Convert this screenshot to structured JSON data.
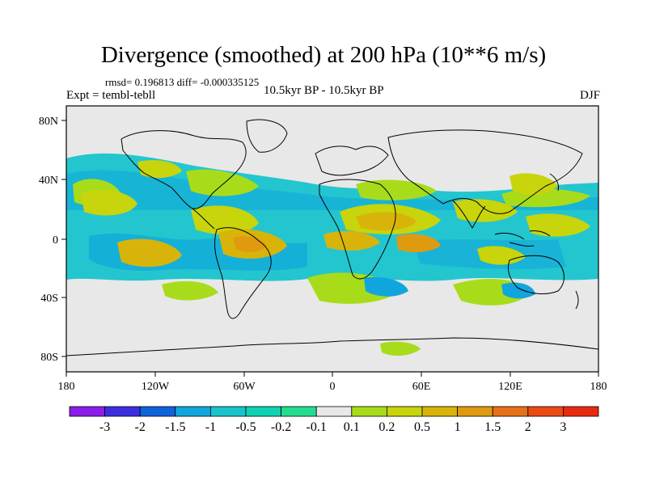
{
  "title": "Divergence (smoothed) at 200 hPa (10**6 m/s)",
  "stats": "rmsd= 0.196813 diff= -0.000335125",
  "experiment": "Expt = tembl-tebll",
  "period": "10.5kyr BP - 10.5kyr BP",
  "season": "DJF",
  "map": {
    "lat_labels": [
      "80N",
      "40N",
      "0",
      "40S",
      "80S"
    ],
    "lon_labels": [
      "180",
      "120W",
      "60W",
      "0",
      "60E",
      "120E",
      "180"
    ]
  },
  "colorbar": {
    "colors": [
      "#8b1ee8",
      "#3c2ee0",
      "#0f62db",
      "#10a6dd",
      "#18c4cc",
      "#0fd2b0",
      "#22dd90",
      "#e8e8e8",
      "#a8dc1a",
      "#c8d40c",
      "#d8b40a",
      "#e09a10",
      "#e87018",
      "#ea4a14",
      "#e82a10"
    ],
    "labels": [
      "-3",
      "-2",
      "-1.5",
      "-1",
      "-0.5",
      "-0.2",
      "-0.1",
      "0.1",
      "0.2",
      "0.5",
      "1",
      "1.5",
      "2",
      "3"
    ]
  }
}
